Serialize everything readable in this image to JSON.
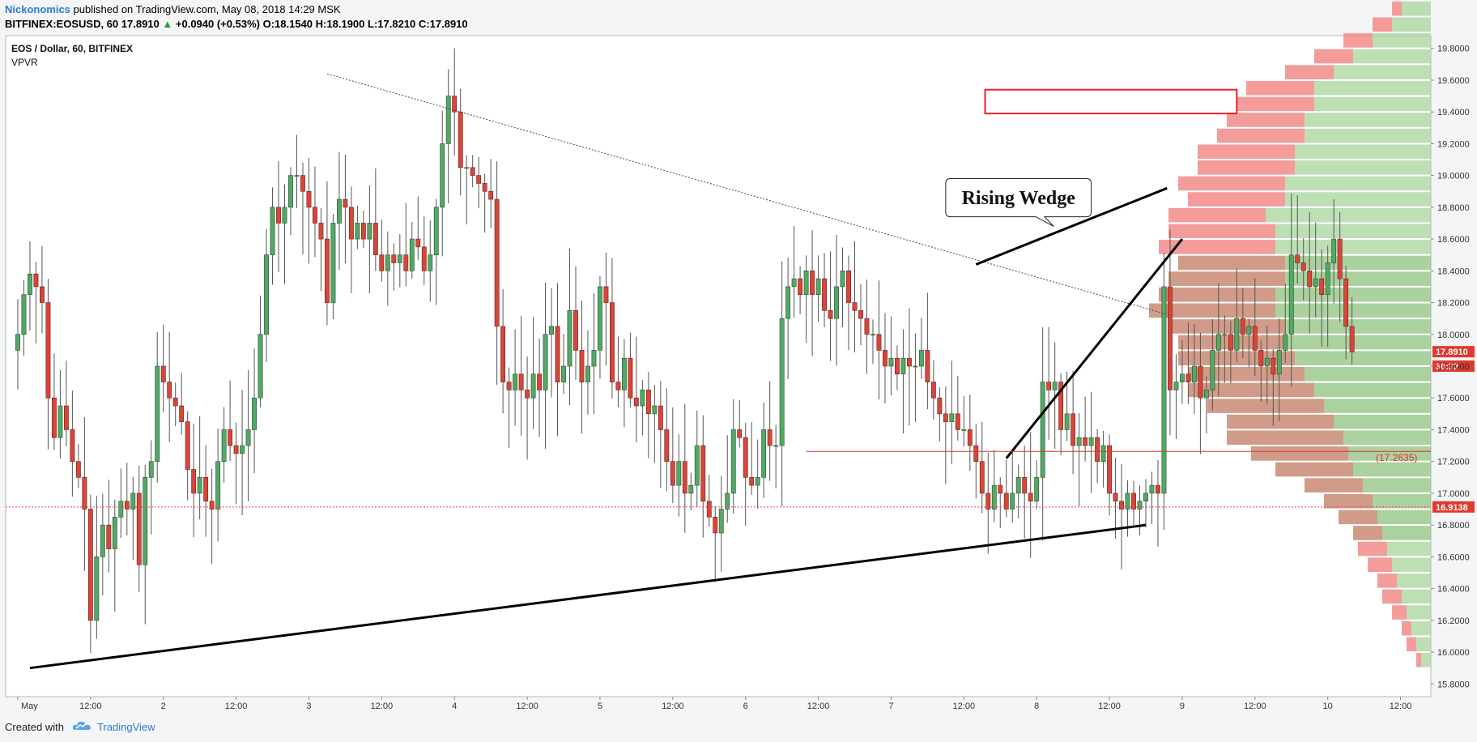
{
  "header": {
    "author": "Nickonomics",
    "published": "published on TradingView.com, May 08, 2018 14:29 MSK",
    "symbol": "BITFINEX:EOSUSD, 60",
    "last": "17.8910",
    "arrow": "▲",
    "change": "+0.0940 (+0.53%)",
    "o_label": "O:",
    "o_value": "18.1540",
    "h_label": "H:",
    "h_value": "18.1900",
    "l_label": "L:",
    "l_value": "17.8210",
    "c_label": "C:",
    "c_value": "17.8910"
  },
  "footer": {
    "created_with": "Created with",
    "brand": "TradingView"
  },
  "colors": {
    "up": "#53a866",
    "down": "#d9453a",
    "up_border": "#244f2c",
    "down_border": "#6b1f18",
    "vp_up": "#8fc27f",
    "vp_down": "#f28b8b",
    "vp_up_val": "#a8d49c",
    "vp_down_val": "#c98a74",
    "box": "#e8202a",
    "hline": "#d33"
  },
  "chart_data": {
    "type": "candlestick",
    "title": "EOS / Dollar, 60, BITFINEX",
    "indicator": "VPVR",
    "ylim": [
      15.72,
      19.88
    ],
    "y_ticks": [
      "19.8000",
      "19.6000",
      "19.4000",
      "19.2000",
      "19.0000",
      "18.8000",
      "18.6000",
      "18.4000",
      "18.2000",
      "18.0000",
      "17.8000",
      "17.6000",
      "17.4000",
      "17.2000",
      "17.0000",
      "16.8000",
      "16.6000",
      "16.4000",
      "16.2000",
      "16.0000",
      "15.8000"
    ],
    "x_ticks": [
      {
        "label": "May",
        "hour": 0
      },
      {
        "label": "12:00",
        "hour": 12
      },
      {
        "label": "2",
        "hour": 24
      },
      {
        "label": "12:00",
        "hour": 36
      },
      {
        "label": "3",
        "hour": 48
      },
      {
        "label": "12:00",
        "hour": 60
      },
      {
        "label": "4",
        "hour": 72
      },
      {
        "label": "12:00",
        "hour": 84
      },
      {
        "label": "5",
        "hour": 96
      },
      {
        "label": "12:00",
        "hour": 108
      },
      {
        "label": "6",
        "hour": 120
      },
      {
        "label": "12:00",
        "hour": 132
      },
      {
        "label": "7",
        "hour": 144
      },
      {
        "label": "12:00",
        "hour": 156
      },
      {
        "label": "8",
        "hour": 168
      },
      {
        "label": "12:00",
        "hour": 180
      },
      {
        "label": "9",
        "hour": 192
      },
      {
        "label": "12:00",
        "hour": 204
      },
      {
        "label": "10",
        "hour": 216
      },
      {
        "label": "12:00",
        "hour": 228
      }
    ],
    "x_start_hour": -2,
    "x_end_hour": 233,
    "closes": [
      18.0,
      18.25,
      18.38,
      18.3,
      18.2,
      17.6,
      17.35,
      17.55,
      17.4,
      17.2,
      17.1,
      16.9,
      16.2,
      16.6,
      16.8,
      16.65,
      16.85,
      16.95,
      16.9,
      17.0,
      16.55,
      17.1,
      17.2,
      17.8,
      17.7,
      17.6,
      17.55,
      17.45,
      17.15,
      17.0,
      17.1,
      16.95,
      16.9,
      17.2,
      17.4,
      17.3,
      17.25,
      17.3,
      17.4,
      17.6,
      18.0,
      18.5,
      18.8,
      18.7,
      18.8,
      19.0,
      19.0,
      18.9,
      18.8,
      18.7,
      18.6,
      18.2,
      18.7,
      18.85,
      18.8,
      18.6,
      18.7,
      18.6,
      18.7,
      18.5,
      18.4,
      18.5,
      18.45,
      18.5,
      18.4,
      18.6,
      18.55,
      18.4,
      18.5,
      18.8,
      19.2,
      19.5,
      19.4,
      19.05,
      19.05,
      19.0,
      18.95,
      18.9,
      18.85,
      18.05,
      17.7,
      17.65,
      17.75,
      17.65,
      17.6,
      17.75,
      17.65,
      18.0,
      18.05,
      17.7,
      17.8,
      18.15,
      17.9,
      17.7,
      17.8,
      17.9,
      18.3,
      18.2,
      17.7,
      17.65,
      17.85,
      17.6,
      17.55,
      17.65,
      17.5,
      17.55,
      17.4,
      17.2,
      17.05,
      17.2,
      17.0,
      17.05,
      17.3,
      16.95,
      16.85,
      16.75,
      16.9,
      17.0,
      17.4,
      17.35,
      17.1,
      17.05,
      17.1,
      17.4,
      17.3,
      17.3,
      18.1,
      18.3,
      18.35,
      18.25,
      18.4,
      18.25,
      18.35,
      18.15,
      18.1,
      18.3,
      18.4,
      18.2,
      18.15,
      18.1,
      18.0,
      18.0,
      17.9,
      17.8,
      17.85,
      17.75,
      17.85,
      17.8,
      17.8,
      17.9,
      17.7,
      17.6,
      17.5,
      17.45,
      17.5,
      17.4,
      17.4,
      17.3,
      17.2,
      17.0,
      16.9,
      17.05,
      17.0,
      16.9,
      17.0,
      17.1,
      17.0,
      16.95,
      17.1,
      17.7,
      17.65,
      17.7,
      17.4,
      17.5,
      17.3,
      17.35,
      17.3,
      17.35,
      17.2,
      17.3,
      17.0,
      16.95,
      16.9,
      17.0,
      16.9,
      16.95,
      17.0,
      17.05,
      17.0,
      18.3,
      17.65,
      17.7,
      17.75,
      17.7,
      17.8,
      17.6,
      17.65,
      17.9,
      18.0,
      18.0,
      17.9,
      18.1,
      18.0,
      18.05,
      17.9,
      17.8,
      17.85,
      17.75,
      17.9,
      18.0,
      18.5,
      18.45,
      18.4,
      18.3,
      18.35,
      18.25,
      18.45,
      18.6,
      18.35,
      18.05,
      17.89
    ],
    "volume_profile": {
      "price_step": 0.1,
      "start_price": 15.9,
      "up": [
        0.01,
        0.015,
        0.02,
        0.025,
        0.03,
        0.035,
        0.04,
        0.045,
        0.05,
        0.055,
        0.06,
        0.07,
        0.08,
        0.085,
        0.09,
        0.1,
        0.11,
        0.12,
        0.13,
        0.14,
        0.15,
        0.15,
        0.16,
        0.16,
        0.15,
        0.15,
        0.16,
        0.16,
        0.17,
        0.15,
        0.15,
        0.14,
        0.14,
        0.13,
        0.13,
        0.12,
        0.12,
        0.1,
        0.08,
        0.06,
        0.04,
        0.03
      ],
      "down": [
        0.005,
        0.01,
        0.01,
        0.015,
        0.02,
        0.02,
        0.025,
        0.03,
        0.03,
        0.04,
        0.05,
        0.06,
        0.08,
        0.1,
        0.12,
        0.11,
        0.12,
        0.13,
        0.12,
        0.12,
        0.11,
        0.12,
        0.13,
        0.12,
        0.12,
        0.11,
        0.12,
        0.11,
        0.1,
        0.1,
        0.11,
        0.1,
        0.1,
        0.09,
        0.08,
        0.08,
        0.07,
        0.05,
        0.04,
        0.03,
        0.02,
        0.01
      ]
    },
    "drawings": {
      "label": "Rising Wedge",
      "level_label": "(17.2635)",
      "dashed_level": "16.9138",
      "last_price": "17.8910",
      "countdown": "30:22"
    }
  }
}
